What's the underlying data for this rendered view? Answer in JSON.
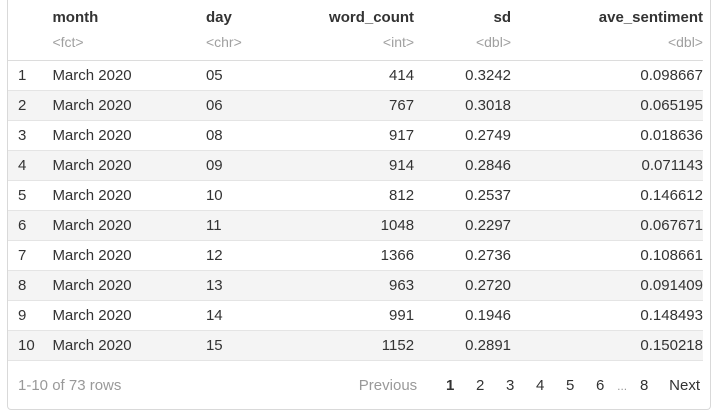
{
  "table": {
    "columns": [
      {
        "name": "",
        "type": ""
      },
      {
        "name": "month",
        "type": "<fct>"
      },
      {
        "name": "day",
        "type": "<chr>"
      },
      {
        "name": "word_count",
        "type": "<int>"
      },
      {
        "name": "sd",
        "type": "<dbl>"
      },
      {
        "name": "ave_sentiment",
        "type": "<dbl>"
      }
    ],
    "rows": [
      [
        "1",
        "March 2020",
        "05",
        "414",
        "0.3242",
        "0.098667"
      ],
      [
        "2",
        "March 2020",
        "06",
        "767",
        "0.3018",
        "0.065195"
      ],
      [
        "3",
        "March 2020",
        "08",
        "917",
        "0.2749",
        "0.018636"
      ],
      [
        "4",
        "March 2020",
        "09",
        "914",
        "0.2846",
        "0.071143"
      ],
      [
        "5",
        "March 2020",
        "10",
        "812",
        "0.2537",
        "0.146612"
      ],
      [
        "6",
        "March 2020",
        "11",
        "1048",
        "0.2297",
        "0.067671"
      ],
      [
        "7",
        "March 2020",
        "12",
        "1366",
        "0.2736",
        "0.108661"
      ],
      [
        "8",
        "March 2020",
        "13",
        "963",
        "0.2720",
        "0.091409"
      ],
      [
        "9",
        "March 2020",
        "14",
        "991",
        "0.1946",
        "0.148493"
      ],
      [
        "10",
        "March 2020",
        "15",
        "1152",
        "0.2891",
        "0.150218"
      ]
    ]
  },
  "footer": {
    "rows_info": "1-10 of 73 rows",
    "previous_label": "Previous",
    "pages": [
      "1",
      "2",
      "3",
      "4",
      "5",
      "6"
    ],
    "ellipsis": "...",
    "last_page": "8",
    "next_label": "Next",
    "current_page": "1"
  }
}
